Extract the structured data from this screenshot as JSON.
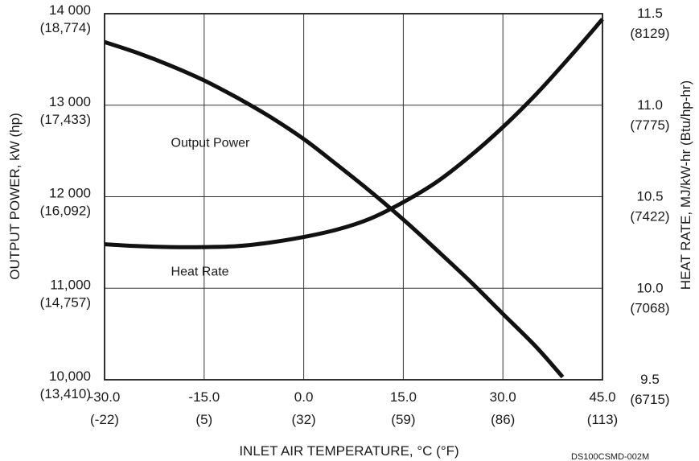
{
  "chart_data": {
    "type": "line",
    "x_axis": {
      "title": "INLET AIR TEMPERATURE, °C (°F)",
      "range": [
        -30,
        45
      ],
      "ticks": [
        {
          "value": -30,
          "label": "-30.0",
          "sub": "(-22)"
        },
        {
          "value": -15,
          "label": "-15.0",
          "sub": "(5)"
        },
        {
          "value": 0,
          "label": "0.0",
          "sub": "(32)"
        },
        {
          "value": 15,
          "label": "15.0",
          "sub": "(59)"
        },
        {
          "value": 30,
          "label": "30.0",
          "sub": "(86)"
        },
        {
          "value": 45,
          "label": "45.0",
          "sub": "(113)"
        }
      ]
    },
    "y_left": {
      "title": "OUTPUT POWER, kW (hp)",
      "range": [
        10000,
        14000
      ],
      "ticks": [
        {
          "value": 14000,
          "label": "14 000",
          "sub": "(18,774)"
        },
        {
          "value": 13000,
          "label": "13 000",
          "sub": "(17,433)"
        },
        {
          "value": 12000,
          "label": "12 000",
          "sub": "(16,092)"
        },
        {
          "value": 11000,
          "label": "11,000",
          "sub": "(14,757)"
        },
        {
          "value": 10000,
          "label": "10,000",
          "sub": "(13,410)"
        }
      ]
    },
    "y_right": {
      "title": "HEAT RATE, MJ/kW-hr (Btu/hp-hr)",
      "range": [
        9.5,
        11.5
      ],
      "ticks": [
        {
          "value": 11.5,
          "label": "11.5",
          "sub": "(8129)"
        },
        {
          "value": 11.0,
          "label": "11.0",
          "sub": "(7775)"
        },
        {
          "value": 10.5,
          "label": "10.5",
          "sub": "(7422)"
        },
        {
          "value": 10.0,
          "label": "10.0",
          "sub": "(7068)"
        },
        {
          "value": 9.5,
          "label": "9.5",
          "sub": "(6715)"
        }
      ]
    },
    "grid": true,
    "series": [
      {
        "name": "Output Power",
        "axis": "left",
        "x": [
          -30,
          -25,
          -20,
          -15,
          -10,
          -5,
          0,
          5,
          10,
          15,
          20,
          25,
          30,
          35,
          39
        ],
        "y": [
          13690,
          13570,
          13430,
          13270,
          13080,
          12870,
          12630,
          12350,
          12060,
          11750,
          11420,
          11080,
          10720,
          10360,
          10030
        ]
      },
      {
        "name": "Heat Rate",
        "axis": "right",
        "x": [
          -30,
          -25,
          -20,
          -15,
          -10,
          -5,
          0,
          5,
          10,
          15,
          20,
          25,
          30,
          35,
          40,
          45
        ],
        "y": [
          10.24,
          10.23,
          10.225,
          10.225,
          10.23,
          10.25,
          10.28,
          10.32,
          10.38,
          10.47,
          10.58,
          10.72,
          10.88,
          11.06,
          11.26,
          11.47
        ]
      }
    ],
    "note": "DS100CSMD-002M"
  }
}
